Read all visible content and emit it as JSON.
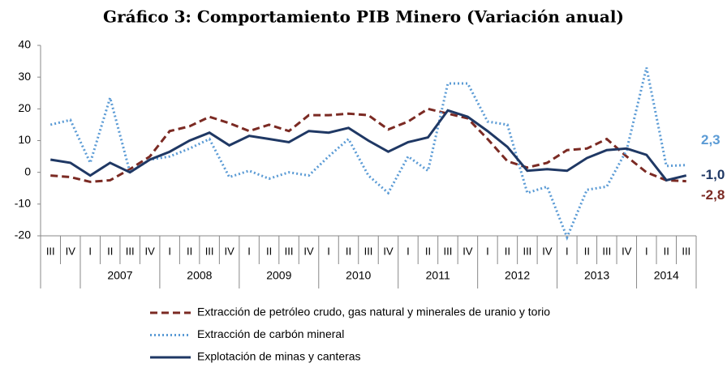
{
  "chart_data": {
    "type": "line",
    "title": "Gráfico 3: Comportamiento PIB Minero (Variación anual)",
    "categories": [
      "III",
      "IV",
      "I",
      "II",
      "III",
      "IV",
      "I",
      "II",
      "III",
      "IV",
      "I",
      "II",
      "III",
      "IV",
      "I",
      "II",
      "III",
      "IV",
      "I",
      "II",
      "III",
      "IV",
      "I",
      "II",
      "III",
      "IV",
      "I",
      "II",
      "III",
      "IV",
      "I",
      "II",
      "III"
    ],
    "year_labels": [
      "2007",
      "2008",
      "2009",
      "2010",
      "2011",
      "2012",
      "2013",
      "2014"
    ],
    "ylim": [
      -20,
      40
    ],
    "yticks": [
      -20,
      -10,
      0,
      10,
      20,
      30,
      40
    ],
    "grid": false,
    "series": [
      {
        "name": "Extracción de petróleo crudo, gas natural y minerales de uranio y torio",
        "color": "#7b2a23",
        "dash": "dashed",
        "values": [
          -1,
          -1.5,
          -3,
          -2.5,
          1,
          5,
          13,
          14.5,
          17.5,
          15.5,
          13,
          15,
          13,
          18,
          18,
          18.5,
          18,
          13.5,
          16,
          20,
          18.5,
          17,
          10.5,
          3.5,
          1.5,
          3,
          7,
          7.5,
          10.5,
          5,
          0,
          -2.5,
          -2.8
        ],
        "end_label": "-2,8"
      },
      {
        "name": "Extracción de carbón mineral",
        "color": "#5b9bd5",
        "dash": "dotted",
        "values": [
          15,
          16.5,
          3,
          23.5,
          0,
          4,
          5,
          7.5,
          10.5,
          -1.5,
          0.5,
          -2,
          0,
          -1,
          5,
          10.5,
          -1,
          -6.5,
          5,
          0.5,
          28,
          28,
          16,
          15,
          -6.5,
          -4.5,
          -20.5,
          -5.5,
          -4.5,
          7,
          33,
          2,
          2.3
        ],
        "end_label": "2,3"
      },
      {
        "name": "Explotación de minas y canteras",
        "color": "#1f3864",
        "dash": "solid",
        "values": [
          4,
          3,
          -1,
          3,
          0,
          4,
          6.5,
          10,
          12.5,
          8.5,
          11.5,
          10.5,
          9.5,
          13,
          12.5,
          14,
          10,
          6.5,
          9.5,
          11,
          19.5,
          17.5,
          13,
          8,
          0.5,
          1,
          0.5,
          4.5,
          7,
          7.5,
          5.5,
          -2.5,
          -1.0
        ],
        "end_label": "-1,0"
      }
    ]
  }
}
